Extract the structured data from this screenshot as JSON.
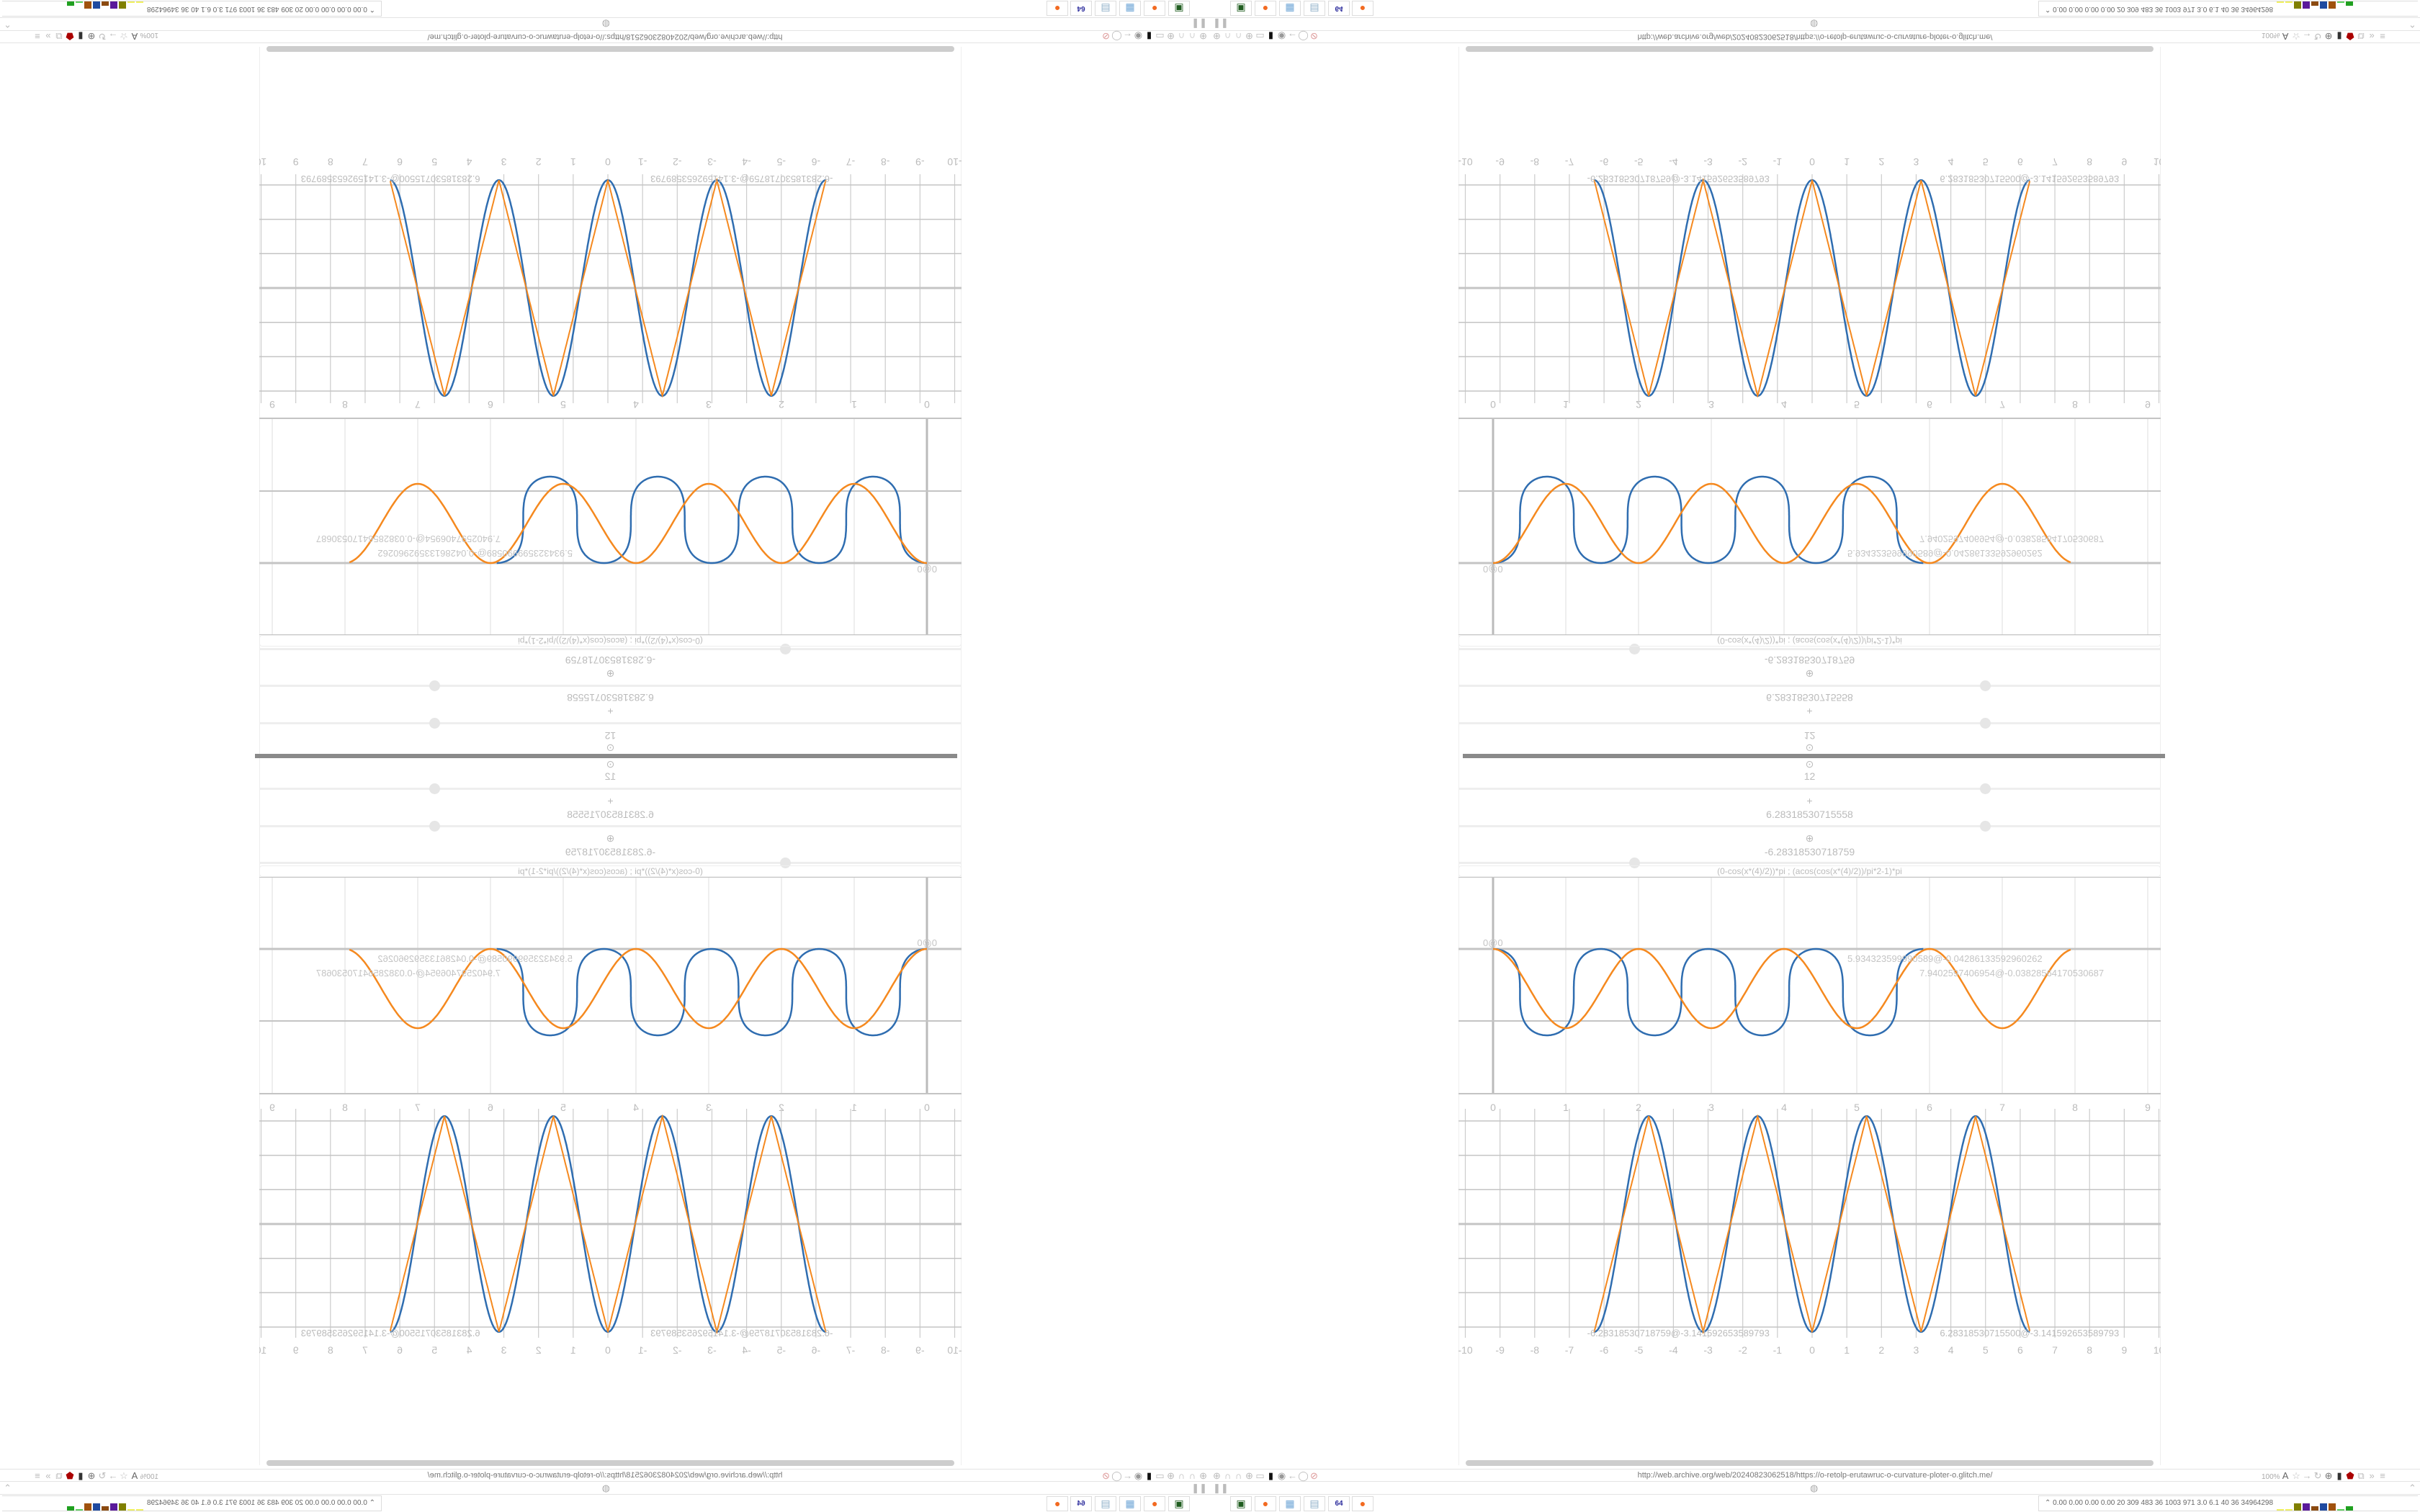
{
  "browser": {
    "url": "http://web.archive.org/web/20240823062518/https://o-retolp-erutawruc-o-curvature-ploter-o.glitch.me/",
    "zoom": "100%",
    "nav_icons_left": [
      "globe-icon",
      "headphones-icon",
      "headphones-icon",
      "globe-icon",
      "folder-icon",
      "trash-icon",
      "shield-badge-icon",
      "arrow-left-icon",
      "shield-icon",
      "lock-slash-icon"
    ],
    "nav_icons_right": [
      "translate-icon",
      "star-icon",
      "arrow-right-icon",
      "reload-icon",
      "globe-icon",
      "trash-icon",
      "red-shield-icon",
      "puzzle-icon",
      "overflow-icon",
      "menu-icon"
    ]
  },
  "controls": {
    "count_icon": "⊙",
    "count_value": "12",
    "count_slider": 0.75,
    "max_icon": "+",
    "max_value": "6.28318530715558",
    "max_slider": 0.75,
    "min_icon": "⊕",
    "min_value": "-6.28318530718759",
    "min_slider": 0.25,
    "formula": "(0-cos(x*(4)/2))*pi ; (acos(cos(x*(4)/2))/pi*2-1)*pi"
  },
  "chart_data": [
    {
      "type": "line",
      "x_ticks": [
        "0",
        "1",
        "2",
        "3",
        "4",
        "5",
        "6",
        "7",
        "8",
        "9"
      ],
      "xlim": [
        0,
        9
      ],
      "grid": true,
      "series": [
        {
          "color": "#2f6db0",
          "description_formula": "(0-cos(x*(4)/2))*pi"
        },
        {
          "color": "#f5891f",
          "description_formula": "(acos(cos(x*(4)/2))/pi*2-1)*pi"
        }
      ],
      "point_labels": [
        "0@0",
        "5.934323599990589@-0.04286133592960262",
        "7.9402597406954@-0.03828564170530687"
      ]
    },
    {
      "type": "line",
      "x_ticks": [
        "-10",
        "-9",
        "-8",
        "-7",
        "-6",
        "-5",
        "-4",
        "-3",
        "-2",
        "-1",
        "0",
        "1",
        "2",
        "3",
        "4",
        "5",
        "6",
        "7",
        "8",
        "9",
        "10"
      ],
      "xlim": [
        -10,
        10
      ],
      "ylim": [
        -3.14159,
        3.14159
      ],
      "grid": true,
      "series": [
        {
          "color": "#2f6db0",
          "formula": "(0-cos(x*(4)/2))*pi",
          "x_range": [
            -6.28318530718759,
            6.28318530715558
          ]
        },
        {
          "color": "#f5891f",
          "formula": "(acos(cos(x*(4)/2))/pi*2-1)*pi",
          "x_range": [
            -6.28318530718759,
            6.28318530715558
          ]
        }
      ],
      "point_labels": [
        "-6.28318530718759@-3.141592653589793",
        "6.28318530715500@-3.141592653589793"
      ]
    }
  ],
  "taskbar": {
    "apps": [
      {
        "name": "terminal",
        "glyph": "▣",
        "color": "#1f5c1f"
      },
      {
        "name": "firefox",
        "glyph": "●",
        "color": "#f26a21"
      },
      {
        "name": "calculator",
        "glyph": "▦",
        "color": "#6fa6d6"
      },
      {
        "name": "notepad",
        "glyph": "▤",
        "color": "#8fb0c8"
      },
      {
        "name": "floppy",
        "glyph": "64",
        "color": "#2b2b9c"
      },
      {
        "name": "firefox",
        "glyph": "●",
        "color": "#f26a21"
      }
    ],
    "tray_stats": "0.00 0.00 0.00 0.00  20  309  483  36  1003 971  3.0  6.1  40  36  34964298",
    "tray_bar_colors": [
      "#f0f060",
      "#f0f060",
      "#808000",
      "#5a1a9a",
      "#8b4a10",
      "#1f4aa0",
      "#a0520d",
      "#60d060",
      "#20a020"
    ]
  }
}
